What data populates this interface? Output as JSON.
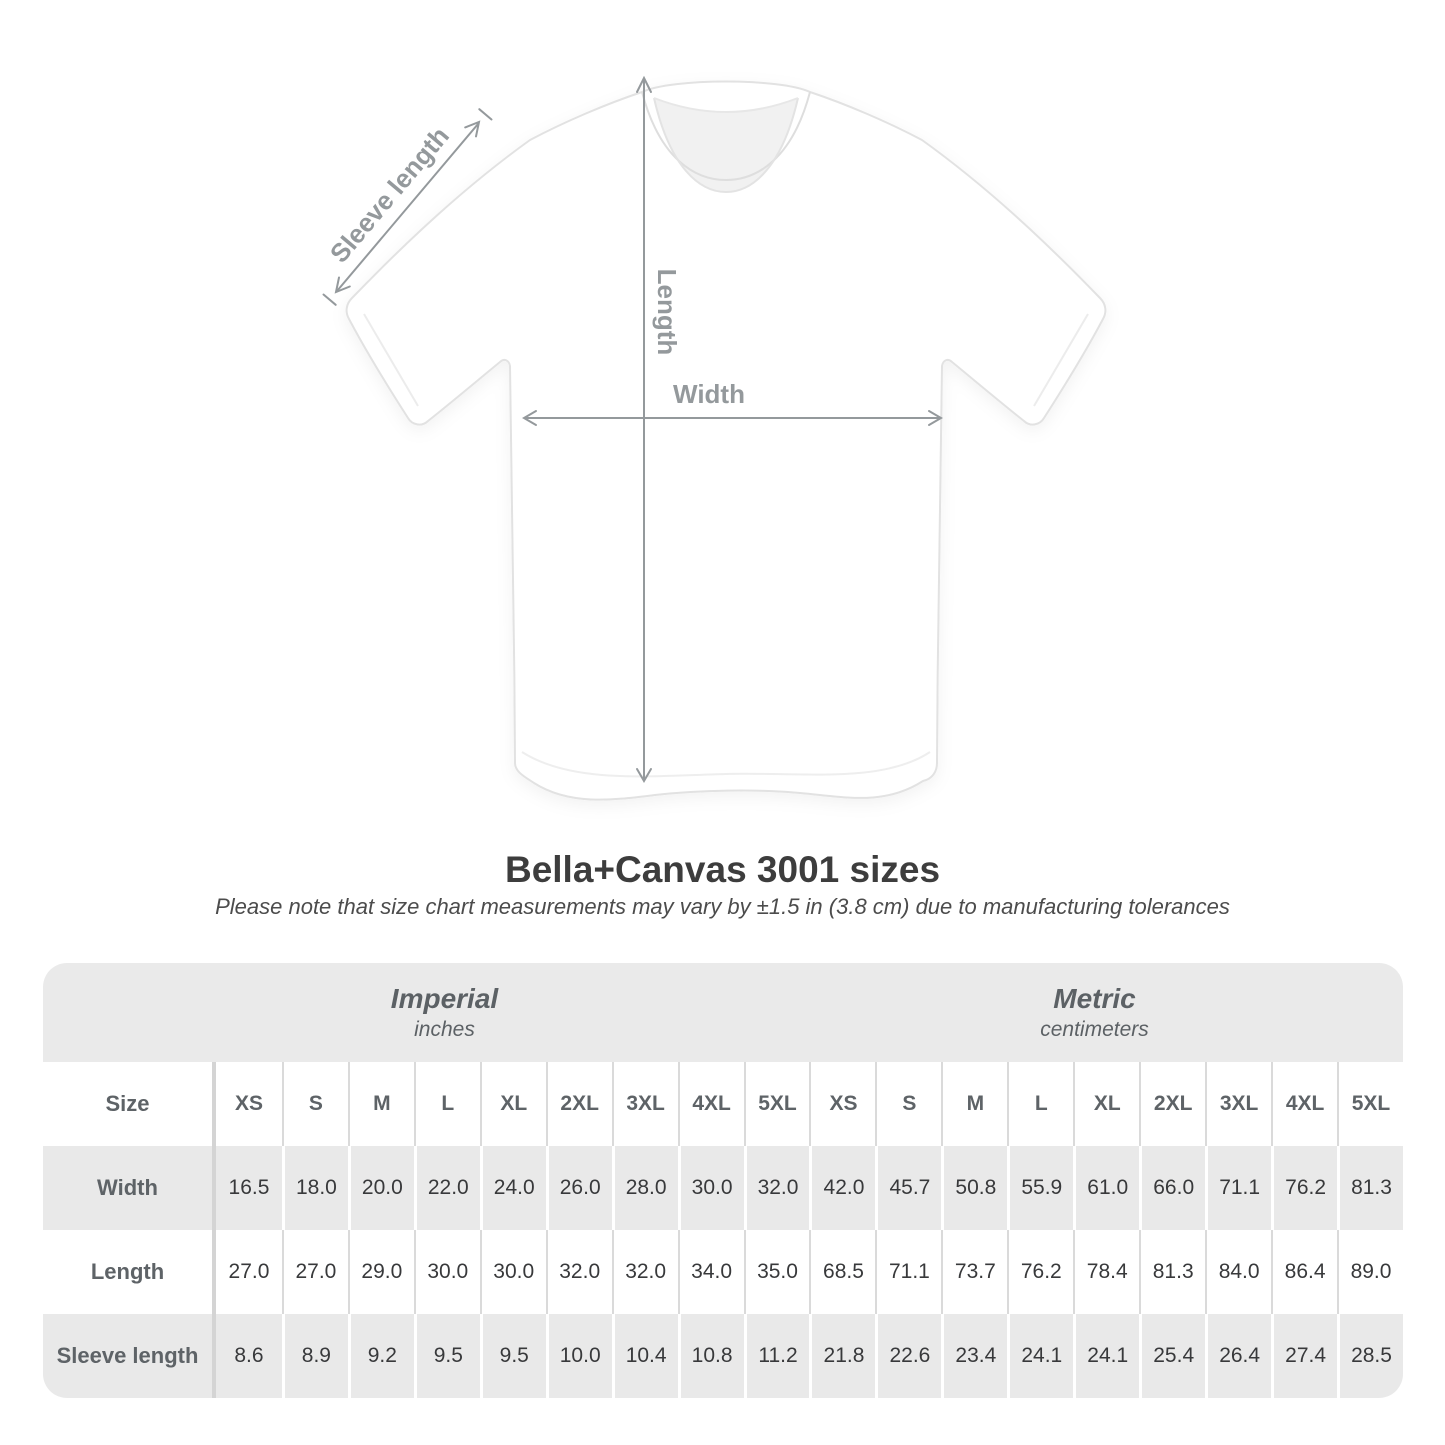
{
  "title": "Bella+Canvas 3001 sizes",
  "subtitle": "Please note that size chart measurements may vary by ±1.5 in (3.8 cm) due to manufacturing tolerances",
  "diagram": {
    "sleeve_label": "Sleeve length",
    "length_label": "Length",
    "width_label": "Width"
  },
  "table": {
    "size_label": "Size",
    "groups": [
      {
        "name": "Imperial",
        "unit": "inches"
      },
      {
        "name": "Metric",
        "unit": "centimeters"
      }
    ],
    "sizes": [
      "XS",
      "S",
      "M",
      "L",
      "XL",
      "2XL",
      "3XL",
      "4XL",
      "5XL"
    ],
    "rows": [
      {
        "label": "Width",
        "imperial": [
          "16.5",
          "18.0",
          "20.0",
          "22.0",
          "24.0",
          "26.0",
          "28.0",
          "30.0",
          "32.0"
        ],
        "metric": [
          "42.0",
          "45.7",
          "50.8",
          "55.9",
          "61.0",
          "66.0",
          "71.1",
          "76.2",
          "81.3"
        ]
      },
      {
        "label": "Length",
        "imperial": [
          "27.0",
          "27.0",
          "29.0",
          "30.0",
          "30.0",
          "32.0",
          "32.0",
          "34.0",
          "35.0"
        ],
        "metric": [
          "68.5",
          "71.1",
          "73.7",
          "76.2",
          "78.4",
          "81.3",
          "84.0",
          "86.4",
          "89.0"
        ]
      },
      {
        "label": "Sleeve length",
        "imperial": [
          "8.6",
          "8.9",
          "9.2",
          "9.5",
          "9.5",
          "10.0",
          "10.4",
          "10.8",
          "11.2"
        ],
        "metric": [
          "21.8",
          "22.6",
          "23.4",
          "24.1",
          "24.1",
          "25.4",
          "26.4",
          "27.4",
          "28.5"
        ]
      }
    ]
  },
  "chart_data": {
    "type": "table",
    "title": "Bella+Canvas 3001 sizes",
    "note": "Please note that size chart measurements may vary by ±1.5 in (3.8 cm) due to manufacturing tolerances",
    "column_groups": [
      "Imperial (inches)",
      "Metric (centimeters)"
    ],
    "columns": [
      "XS",
      "S",
      "M",
      "L",
      "XL",
      "2XL",
      "3XL",
      "4XL",
      "5XL",
      "XS",
      "S",
      "M",
      "L",
      "XL",
      "2XL",
      "3XL",
      "4XL",
      "5XL"
    ],
    "rows": [
      {
        "label": "Width",
        "values": [
          16.5,
          18.0,
          20.0,
          22.0,
          24.0,
          26.0,
          28.0,
          30.0,
          32.0,
          42.0,
          45.7,
          50.8,
          55.9,
          61.0,
          66.0,
          71.1,
          76.2,
          81.3
        ]
      },
      {
        "label": "Length",
        "values": [
          27.0,
          27.0,
          29.0,
          30.0,
          30.0,
          32.0,
          32.0,
          34.0,
          35.0,
          68.5,
          71.1,
          73.7,
          76.2,
          78.4,
          81.3,
          84.0,
          86.4,
          89.0
        ]
      },
      {
        "label": "Sleeve length",
        "values": [
          8.6,
          8.9,
          9.2,
          9.5,
          9.5,
          10.0,
          10.4,
          10.8,
          11.2,
          21.8,
          22.6,
          23.4,
          24.1,
          24.1,
          25.4,
          26.4,
          27.4,
          28.5
        ]
      }
    ]
  },
  "colors": {
    "table_band_gray": "#e9e9e9",
    "header_text_gray": "#5e6367",
    "value_text": "#38393b",
    "arrow_gray": "#94999c",
    "title_text": "#3d3d3d"
  }
}
